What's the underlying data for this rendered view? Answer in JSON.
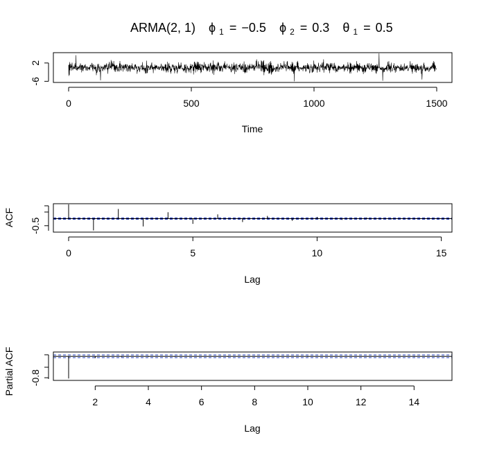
{
  "chart_data": [
    {
      "type": "line",
      "title": "ARMA(2, 1)",
      "params": [
        {
          "sym": "ϕ",
          "sub": "1",
          "val": "−0.5"
        },
        {
          "sym": "ϕ",
          "sub": "2",
          "val": "0.3"
        },
        {
          "sym": "θ",
          "sub": "1",
          "val": "0.5"
        }
      ],
      "xlabel": "Time",
      "ylabel": "",
      "n": 1500,
      "xlim": [
        0,
        1500
      ],
      "ylim": [
        -6.5,
        6.5
      ],
      "xticks": [
        0,
        500,
        1000,
        1500
      ],
      "yticks": [
        -6,
        2
      ],
      "spikes": [
        {
          "x": 1265,
          "y": 6.2
        },
        {
          "x": 1280,
          "y": -5.8
        },
        {
          "x": 130,
          "y": -5.6
        },
        {
          "x": 920,
          "y": -6.0
        },
        {
          "x": 30,
          "y": 5.4
        },
        {
          "x": 1440,
          "y": -5.2
        }
      ]
    },
    {
      "type": "bar",
      "xlabel": "Lag",
      "ylabel": "ACF",
      "lags": [
        0,
        1,
        2,
        3,
        4,
        5,
        6,
        7,
        8,
        9,
        10,
        11,
        12,
        13,
        14,
        15
      ],
      "values": [
        1.0,
        -0.83,
        0.68,
        -0.55,
        0.45,
        -0.37,
        0.3,
        -0.24,
        0.19,
        -0.15,
        0.12,
        -0.09,
        0.07,
        -0.05,
        0.04,
        -0.03
      ],
      "conf": 0.05,
      "xlim": [
        0,
        15.4
      ],
      "ylim": [
        -0.95,
        1.05
      ],
      "xticks": [
        0,
        5,
        10,
        15
      ],
      "yticks": [
        -0.5
      ]
    },
    {
      "type": "bar",
      "xlabel": "Lag",
      "ylabel": "Partial ACF",
      "lags": [
        1,
        2,
        3,
        4,
        5,
        6,
        7,
        8,
        9,
        10,
        11,
        12,
        13,
        14,
        15
      ],
      "values": [
        -0.83,
        -0.07,
        -0.03,
        -0.02,
        -0.02,
        -0.01,
        -0.02,
        -0.01,
        -0.01,
        -0.02,
        -0.01,
        -0.01,
        -0.01,
        -0.02,
        -0.01
      ],
      "conf": 0.05,
      "xlim": [
        1,
        15.4
      ],
      "ylim": [
        -0.9,
        0.16
      ],
      "xticks": [
        2,
        4,
        6,
        8,
        10,
        12,
        14
      ],
      "yticks": [
        -0.8
      ]
    }
  ]
}
